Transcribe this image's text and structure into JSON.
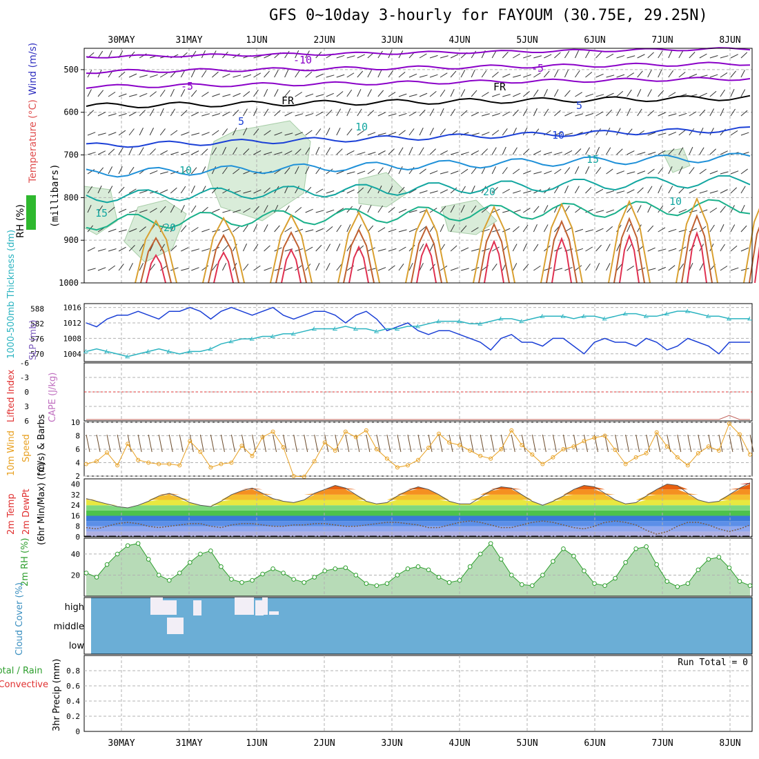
{
  "title": "GFS 0~10day 3-hourly for FAYOUM (30.75E, 29.25N)",
  "day_labels": [
    "30MAY",
    "31MAY",
    "1JUN",
    "2JUN",
    "3JUN",
    "4JUN",
    "5JUN",
    "6JUN",
    "7JUN",
    "8JUN"
  ],
  "colors": {
    "grid": "#b0b0b0",
    "purple": "#8a00c8",
    "blue": "#1a3fd6",
    "cyan": "#2ab3c0",
    "green_rh": "#2d9e2d",
    "orange": "#e8a020",
    "cloud_bg": "#6baed6",
    "red": "#e03030"
  },
  "chart_data": [
    {
      "type": "line",
      "panel": "upper-air cross section",
      "ylabel_parts": [
        "RH (%)",
        "Temperature (°C)",
        "Wind (m/s)"
      ],
      "ylabel_units": "(millibars)",
      "y_ticks": [
        500,
        600,
        700,
        800,
        900,
        1000
      ],
      "ylim": [
        1000,
        450
      ],
      "contour_labels": [
        "-10",
        "-5",
        "-5",
        "FR",
        "FR",
        "5",
        "5",
        "10",
        "10",
        "15",
        "20",
        "20",
        "15",
        "10",
        "10"
      ]
    },
    {
      "type": "line",
      "panel": "thickness and SLP",
      "ylabel_left": "1000-500mb Thickness (dm)",
      "ylabel_right": "SLP (mb)",
      "left_ticks": [
        570,
        576,
        582,
        588
      ],
      "right_ticks": [
        1004,
        1008,
        1012,
        1016
      ],
      "series": [
        {
          "name": "SLP (mb)",
          "values": [
            1012,
            1011,
            1013,
            1014,
            1014,
            1015,
            1014,
            1013,
            1015,
            1015,
            1016,
            1015,
            1013,
            1015,
            1016,
            1015,
            1014,
            1015,
            1016,
            1014,
            1013,
            1014,
            1015,
            1015,
            1014,
            1012,
            1014,
            1015,
            1013,
            1010,
            1011,
            1012,
            1010,
            1009,
            1010,
            1010,
            1009,
            1008,
            1007,
            1005,
            1008,
            1009,
            1007,
            1007,
            1006,
            1008,
            1008,
            1006,
            1004,
            1007,
            1008,
            1007,
            1007,
            1006,
            1008,
            1007,
            1005,
            1006,
            1008,
            1007,
            1006,
            1004,
            1007,
            1007,
            1007
          ]
        },
        {
          "name": "1000-500mb Thickness (dm)",
          "values": [
            571,
            572,
            571,
            570,
            569,
            570,
            571,
            572,
            571,
            570,
            571,
            571,
            572,
            574,
            575,
            576,
            576,
            577,
            577,
            578,
            578,
            579,
            580,
            580,
            580,
            581,
            580,
            580,
            579,
            580,
            580,
            581,
            581,
            582,
            583,
            583,
            583,
            582,
            582,
            583,
            584,
            584,
            583,
            584,
            585,
            585,
            585,
            584,
            585,
            585,
            584,
            585,
            586,
            586,
            585,
            585,
            586,
            587,
            587,
            586,
            585,
            585,
            584,
            584,
            584
          ]
        }
      ]
    },
    {
      "type": "line",
      "panel": "CAPE / Lifted Index",
      "ylabel_parts": [
        "Lifted Index",
        "CAPE (J/kg)"
      ],
      "y_ticks": [
        "6",
        "3",
        "0",
        "-3",
        "-6"
      ],
      "series": [
        {
          "name": "Lifted Index",
          "values": [
            6,
            6,
            6,
            6,
            6,
            6,
            6,
            6,
            6,
            6,
            6,
            6,
            6,
            6,
            6,
            6,
            6,
            6,
            6,
            6,
            6,
            6,
            6,
            6,
            6,
            6,
            6,
            6,
            6,
            6,
            6,
            6,
            6,
            6,
            6,
            6,
            6,
            6,
            6,
            6,
            6,
            6,
            6,
            6,
            6,
            6,
            6,
            6,
            6,
            6,
            6,
            6,
            6,
            6,
            6,
            6,
            6,
            6,
            6,
            6,
            6,
            6,
            4,
            6,
            6
          ]
        }
      ]
    },
    {
      "type": "line",
      "panel": "10m wind",
      "ylabel_parts": [
        "10m Wind",
        "Speed",
        "(m/s) & Barbs"
      ],
      "y_ticks": [
        2,
        4,
        6,
        8,
        10
      ],
      "ylim": [
        2,
        10
      ],
      "series": [
        {
          "name": "Speed",
          "values": [
            3.8,
            4.2,
            5.5,
            3.6,
            6.8,
            4.4,
            4.0,
            3.8,
            3.8,
            3.6,
            7.2,
            5.6,
            3.3,
            3.8,
            4.0,
            6.5,
            5.0,
            7.8,
            8.6,
            6.3,
            2.0,
            1.9,
            4.2,
            7.0,
            5.8,
            8.6,
            7.8,
            8.8,
            6.0,
            4.6,
            3.3,
            3.6,
            4.4,
            6.2,
            8.3,
            7.0,
            6.6,
            5.8,
            5.0,
            4.6,
            6.0,
            8.8,
            6.6,
            5.2,
            3.8,
            4.8,
            6.0,
            6.4,
            7.2,
            7.7,
            8.0,
            5.9,
            3.8,
            4.8,
            5.4,
            8.5,
            6.4,
            4.8,
            3.6,
            5.4,
            6.4,
            5.8,
            9.8,
            8.2,
            5.2
          ]
        }
      ]
    },
    {
      "type": "area",
      "panel": "2m temperature",
      "ylabel_parts": [
        "2m Temp",
        "2m DewPt",
        "(6hr Min/Max) (°C)"
      ],
      "y_ticks": [
        0,
        8,
        16,
        24,
        32,
        40
      ],
      "ylim": [
        0,
        44
      ],
      "series": [
        {
          "name": "2m Temp",
          "values": [
            29,
            27,
            25,
            23,
            22,
            24,
            27,
            31,
            33,
            30,
            26,
            24,
            23,
            27,
            32,
            35,
            37,
            33,
            29,
            27,
            26,
            28,
            33,
            36,
            39,
            37,
            32,
            27,
            25,
            26,
            31,
            35,
            38,
            36,
            32,
            27,
            25,
            25,
            30,
            35,
            38,
            37,
            32,
            27,
            24,
            27,
            31,
            36,
            39,
            38,
            33,
            28,
            25,
            26,
            31,
            36,
            40,
            39,
            33,
            28,
            26,
            27,
            32,
            37,
            41
          ]
        },
        {
          "name": "2m DewPt",
          "values": [
            7,
            6,
            8,
            10,
            11,
            10,
            8,
            7,
            8,
            9,
            10,
            10,
            8,
            7,
            9,
            10,
            10,
            9,
            8,
            8,
            9,
            9,
            10,
            10,
            9,
            8,
            8,
            9,
            10,
            11,
            11,
            10,
            9,
            7,
            7,
            9,
            11,
            12,
            11,
            9,
            7,
            7,
            9,
            11,
            12,
            11,
            9,
            7,
            6,
            8,
            11,
            12,
            11,
            9,
            5,
            2,
            4,
            8,
            11,
            11,
            9,
            6,
            4,
            6,
            9
          ]
        }
      ]
    },
    {
      "type": "area",
      "panel": "2m RH",
      "ylabel": "2m RH (%)",
      "y_ticks": [
        20,
        40
      ],
      "ylim": [
        0,
        55
      ],
      "series": [
        {
          "name": "2m RH",
          "values": [
            22,
            18,
            30,
            40,
            48,
            50,
            35,
            20,
            15,
            22,
            32,
            40,
            43,
            28,
            16,
            13,
            15,
            21,
            26,
            22,
            16,
            13,
            18,
            24,
            26,
            27,
            20,
            12,
            10,
            12,
            20,
            26,
            28,
            25,
            18,
            13,
            15,
            28,
            40,
            50,
            35,
            20,
            11,
            10,
            20,
            33,
            45,
            38,
            24,
            12,
            10,
            17,
            32,
            45,
            47,
            30,
            14,
            9,
            12,
            25,
            35,
            37,
            27,
            14,
            10
          ]
        }
      ]
    },
    {
      "type": "bar",
      "panel": "cloud cover",
      "ylabel": "Cloud Cover (%)",
      "y_ticks": [
        "high",
        "middle",
        "low"
      ]
    },
    {
      "type": "bar",
      "panel": "precipitation",
      "ylabel": "3hr Precip (mm)",
      "legend_parts": [
        "Total / Rain",
        "Convective"
      ],
      "y_ticks": [
        0,
        0.2,
        0.4,
        0.6,
        0.8
      ],
      "ylim": [
        0,
        1
      ],
      "annotation": "Run Total = 0",
      "values": [
        0,
        0,
        0,
        0,
        0,
        0,
        0,
        0,
        0,
        0,
        0,
        0,
        0,
        0,
        0,
        0,
        0,
        0,
        0,
        0,
        0,
        0,
        0,
        0,
        0,
        0,
        0,
        0,
        0,
        0,
        0,
        0,
        0,
        0,
        0,
        0,
        0,
        0,
        0,
        0,
        0,
        0,
        0,
        0,
        0,
        0,
        0,
        0,
        0,
        0,
        0,
        0,
        0,
        0,
        0,
        0,
        0,
        0,
        0,
        0,
        0,
        0,
        0,
        0,
        0
      ]
    }
  ]
}
